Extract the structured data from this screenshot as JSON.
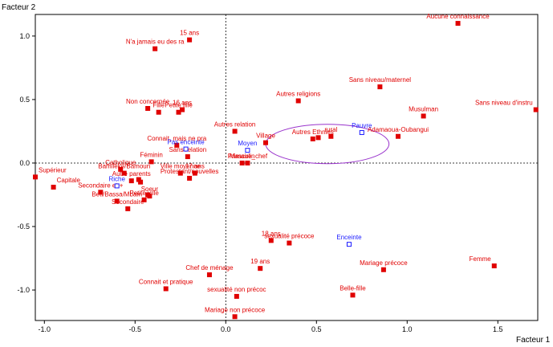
{
  "chart_data": {
    "type": "scatter",
    "title": "",
    "xlabel": "Facteur 1",
    "ylabel": "Facteur 2",
    "xlim": [
      -1.05,
      1.72
    ],
    "ylim": [
      -1.24,
      1.17
    ],
    "xticks": [
      -1.0,
      -0.5,
      0.0,
      0.5,
      1.0,
      1.5
    ],
    "yticks": [
      -1.0,
      -0.5,
      0.0,
      0.5,
      1.0
    ],
    "xtick_labels": [
      "-1.0",
      "-0.5",
      "0.0",
      "0.5",
      "1.0",
      "1.5"
    ],
    "ytick_labels": [
      "-1.0",
      "-0.5",
      "0.0",
      "0.5",
      "1.0"
    ],
    "colors": {
      "active": "#e00000",
      "supplementary": "#1a1aff",
      "ellipse": "#9933cc"
    },
    "ellipse": {
      "cx": 0.56,
      "cy": 0.15,
      "rx": 0.34,
      "ry": 0.155
    },
    "series": [
      {
        "name": "Modalités actives",
        "marker": "filled-square",
        "points": [
          {
            "label": "Aucune connaissance",
            "x": 1.28,
            "y": 1.1
          },
          {
            "label": "15 ans",
            "x": -0.2,
            "y": 0.97
          },
          {
            "label": "N'a jamais eu des ra",
            "x": -0.39,
            "y": 0.9
          },
          {
            "label": "Sans niveau/maternel",
            "x": 0.85,
            "y": 0.6
          },
          {
            "label": "Autres religions",
            "x": 0.4,
            "y": 0.49
          },
          {
            "label": "Sans niveau d'instru",
            "x": 1.71,
            "y": 0.42
          },
          {
            "label": "Non concernée",
            "x": -0.43,
            "y": 0.43
          },
          {
            "label": "16 ans",
            "x": -0.24,
            "y": 0.42
          },
          {
            "label": "Fille",
            "x": -0.37,
            "y": 0.4
          },
          {
            "label": "Petite fille",
            "x": -0.26,
            "y": 0.4
          },
          {
            "label": "Musulman",
            "x": 1.09,
            "y": 0.37
          },
          {
            "label": "Connait, mais ne pra",
            "x": -0.27,
            "y": 0.14
          },
          {
            "label": "Autres relation",
            "x": 0.05,
            "y": 0.25
          },
          {
            "label": "rural",
            "x": 0.58,
            "y": 0.21
          },
          {
            "label": "Autres Ethnies",
            "x": 0.48,
            "y": 0.19
          },
          {
            "label": "",
            "x": 0.51,
            "y": 0.2
          },
          {
            "label": "Adamaoua-Oubangui",
            "x": 0.95,
            "y": 0.21
          },
          {
            "label": "Village",
            "x": 0.22,
            "y": 0.16
          },
          {
            "label": "Sans relation",
            "x": -0.21,
            "y": 0.05
          },
          {
            "label": "Féminin",
            "x": -0.41,
            "y": 0.01
          },
          {
            "label": "Masculin",
            "x": 0.09,
            "y": 0.0
          },
          {
            "label": "Primaire_chef",
            "x": 0.12,
            "y": 0.0
          },
          {
            "label": "Catholique",
            "x": -0.58,
            "y": -0.05
          },
          {
            "label": "Bamiléké/Bamoun",
            "x": -0.56,
            "y": -0.08
          },
          {
            "label": "Ville moyenne",
            "x": -0.25,
            "y": -0.08
          },
          {
            "label": "17 ans",
            "x": -0.17,
            "y": -0.08
          },
          {
            "label": "Protestant/nouvelles",
            "x": -0.2,
            "y": -0.12
          },
          {
            "label": "Autre parents",
            "x": -0.52,
            "y": -0.14
          },
          {
            "label": "",
            "x": -0.48,
            "y": -0.13
          },
          {
            "label": "",
            "x": -0.47,
            "y": -0.15
          },
          {
            "label": "Supérieur",
            "x": -1.05,
            "y": -0.11
          },
          {
            "label": "Capitale",
            "x": -0.95,
            "y": -0.19
          },
          {
            "label": "Secondaire et +",
            "x": -0.69,
            "y": -0.23
          },
          {
            "label": "Petite ville",
            "x": -0.45,
            "y": -0.29
          },
          {
            "label": "Soeur",
            "x": -0.42,
            "y": -0.26
          },
          {
            "label": "",
            "x": -0.43,
            "y": -0.25
          },
          {
            "label": "Beti/Bassa/Mbam",
            "x": -0.6,
            "y": -0.3
          },
          {
            "label": "Secondaire",
            "x": -0.54,
            "y": -0.36
          },
          {
            "label": "18 ans",
            "x": 0.25,
            "y": -0.61
          },
          {
            "label": "sexualité précoce",
            "x": 0.35,
            "y": -0.63
          },
          {
            "label": "Mariage précoce",
            "x": 0.87,
            "y": -0.84
          },
          {
            "label": "Femme",
            "x": 1.48,
            "y": -0.81
          },
          {
            "label": "Chef de ménage",
            "x": -0.09,
            "y": -0.88
          },
          {
            "label": "19 ans",
            "x": 0.19,
            "y": -0.83
          },
          {
            "label": "Connait et pratique",
            "x": -0.33,
            "y": -0.99
          },
          {
            "label": "Belle-fille",
            "x": 0.7,
            "y": -1.04
          },
          {
            "label": "sexualité non précoc",
            "x": 0.06,
            "y": -1.05
          },
          {
            "label": "Mariage non précoce",
            "x": 0.05,
            "y": -1.21
          }
        ]
      },
      {
        "name": "Modalités supplémentaires",
        "marker": "open-square",
        "points": [
          {
            "label": "Pauvre",
            "x": 0.75,
            "y": 0.24
          },
          {
            "label": "Moyen",
            "x": 0.12,
            "y": 0.1
          },
          {
            "label": "Pas enceinte",
            "x": -0.22,
            "y": 0.11
          },
          {
            "label": "Riche",
            "x": -0.6,
            "y": -0.18
          },
          {
            "label": "Enceinte",
            "x": 0.68,
            "y": -0.64
          }
        ]
      }
    ]
  }
}
